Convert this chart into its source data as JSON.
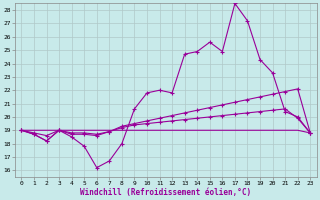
{
  "xlabel": "Windchill (Refroidissement éolien,°C)",
  "xlim": [
    -0.5,
    23.5
  ],
  "ylim": [
    15.5,
    28.5
  ],
  "yticks": [
    16,
    17,
    18,
    19,
    20,
    21,
    22,
    23,
    24,
    25,
    26,
    27,
    28
  ],
  "xticks": [
    0,
    1,
    2,
    3,
    4,
    5,
    6,
    7,
    8,
    9,
    10,
    11,
    12,
    13,
    14,
    15,
    16,
    17,
    18,
    19,
    20,
    21,
    22,
    23
  ],
  "bg_color": "#c8eaea",
  "grid_color": "#b0c8c8",
  "line_color": "#990099",
  "line1_y": [
    19.0,
    18.7,
    18.2,
    19.0,
    18.5,
    17.8,
    16.2,
    16.7,
    18.0,
    20.6,
    21.8,
    22.0,
    21.8,
    24.7,
    24.9,
    25.6,
    24.9,
    28.5,
    27.2,
    24.3,
    23.3,
    20.4,
    20.0,
    18.8
  ],
  "line2_y": [
    19.0,
    18.7,
    18.2,
    19.0,
    18.7,
    18.7,
    18.6,
    18.9,
    19.3,
    19.5,
    19.7,
    19.9,
    20.1,
    20.3,
    20.5,
    20.7,
    20.9,
    21.1,
    21.3,
    21.5,
    21.7,
    21.9,
    22.1,
    18.8
  ],
  "line3_y": [
    19.0,
    18.8,
    18.6,
    19.0,
    18.8,
    18.8,
    18.7,
    18.9,
    19.2,
    19.4,
    19.5,
    19.6,
    19.7,
    19.8,
    19.9,
    20.0,
    20.1,
    20.2,
    20.3,
    20.4,
    20.5,
    20.6,
    19.9,
    18.8
  ],
  "line4_y": [
    19.0,
    19.0,
    19.0,
    19.0,
    19.0,
    19.0,
    19.0,
    19.0,
    19.0,
    19.0,
    19.0,
    19.0,
    19.0,
    19.0,
    19.0,
    19.0,
    19.0,
    19.0,
    19.0,
    19.0,
    19.0,
    19.0,
    19.0,
    18.8
  ]
}
